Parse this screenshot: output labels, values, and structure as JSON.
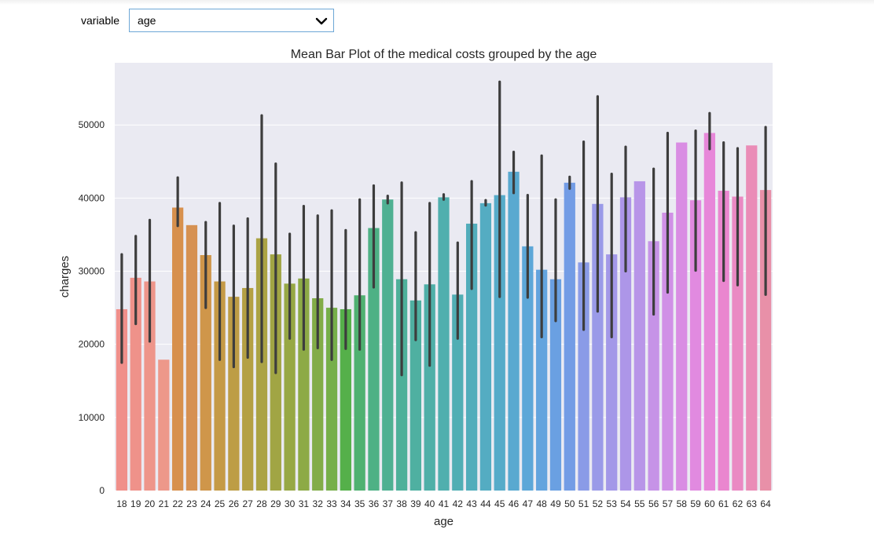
{
  "widget": {
    "label": "variable",
    "selected": "age"
  },
  "chart_data": {
    "type": "bar",
    "title": "Mean Bar Plot of the medical costs grouped by the age",
    "xlabel": "age",
    "ylabel": "charges",
    "ylim": [
      0,
      58500
    ],
    "yticks": [
      0,
      10000,
      20000,
      30000,
      40000,
      50000
    ],
    "grid": true,
    "categories": [
      "18",
      "19",
      "20",
      "21",
      "22",
      "23",
      "24",
      "25",
      "26",
      "27",
      "28",
      "29",
      "30",
      "31",
      "32",
      "33",
      "34",
      "35",
      "36",
      "37",
      "38",
      "39",
      "40",
      "41",
      "42",
      "43",
      "44",
      "45",
      "46",
      "47",
      "48",
      "49",
      "50",
      "51",
      "52",
      "53",
      "54",
      "55",
      "56",
      "57",
      "58",
      "59",
      "60",
      "61",
      "62",
      "63",
      "64"
    ],
    "values": [
      24800,
      29100,
      28600,
      17900,
      38700,
      36300,
      32200,
      28600,
      26500,
      27700,
      34500,
      32300,
      28300,
      29000,
      26300,
      25000,
      24800,
      26700,
      35900,
      39800,
      28900,
      26000,
      28200,
      40100,
      26800,
      36500,
      39300,
      40400,
      43600,
      33400,
      30200,
      28900,
      42100,
      31200,
      39200,
      32300,
      40100,
      42300,
      34100,
      38000,
      47600,
      39700,
      48900,
      41000,
      40200,
      47200,
      41100
    ],
    "ci_low": [
      17500,
      22800,
      20400,
      null,
      36200,
      null,
      25000,
      17900,
      16900,
      18200,
      17600,
      16100,
      20800,
      19300,
      19500,
      17900,
      19400,
      19300,
      27800,
      39300,
      15800,
      20600,
      17100,
      39800,
      20800,
      27600,
      39000,
      26500,
      40700,
      26400,
      21000,
      23200,
      41300,
      22000,
      24500,
      21000,
      30000,
      null,
      24100,
      27100,
      null,
      30100,
      46700,
      28700,
      28100,
      null,
      26800
    ],
    "ci_high": [
      32300,
      34800,
      37000,
      null,
      42800,
      null,
      36700,
      39300,
      36200,
      37200,
      51300,
      44700,
      35100,
      38900,
      37600,
      38300,
      35600,
      39800,
      41700,
      40300,
      42100,
      35300,
      39300,
      40500,
      33900,
      42300,
      39700,
      55900,
      46300,
      40400,
      45800,
      39800,
      42900,
      47700,
      53900,
      43300,
      47000,
      null,
      44000,
      48900,
      null,
      49200,
      51600,
      47600,
      46800,
      null,
      49700
    ],
    "colors": [
      "#f08f8a",
      "#ef928a",
      "#ee958a",
      "#ed988a",
      "#d7904d",
      "#d69152",
      "#cf964a",
      "#c59a46",
      "#bd9d45",
      "#b4a044",
      "#aba344",
      "#a1a544",
      "#97a845",
      "#8daa46",
      "#82ac48",
      "#76af4a",
      "#55b04a",
      "#4fb171",
      "#4eb185",
      "#4fb092",
      "#4eb09a",
      "#4fb0a1",
      "#4fafa8",
      "#50afae",
      "#51aeb4",
      "#52adbb",
      "#54acc2",
      "#56abc9",
      "#59a9d0",
      "#5da7d8",
      "#63a4de",
      "#6aa0e2",
      "#739ce5",
      "#8a9be7",
      "#9a9ae8",
      "#a398e8",
      "#ad96e8",
      "#b895e8",
      "#c693e7",
      "#d090e6",
      "#d98de3",
      "#e18ae0",
      "#e787d9",
      "#ea86cf",
      "#ea89c3",
      "#ea8cb7",
      "#e890a8"
    ]
  }
}
